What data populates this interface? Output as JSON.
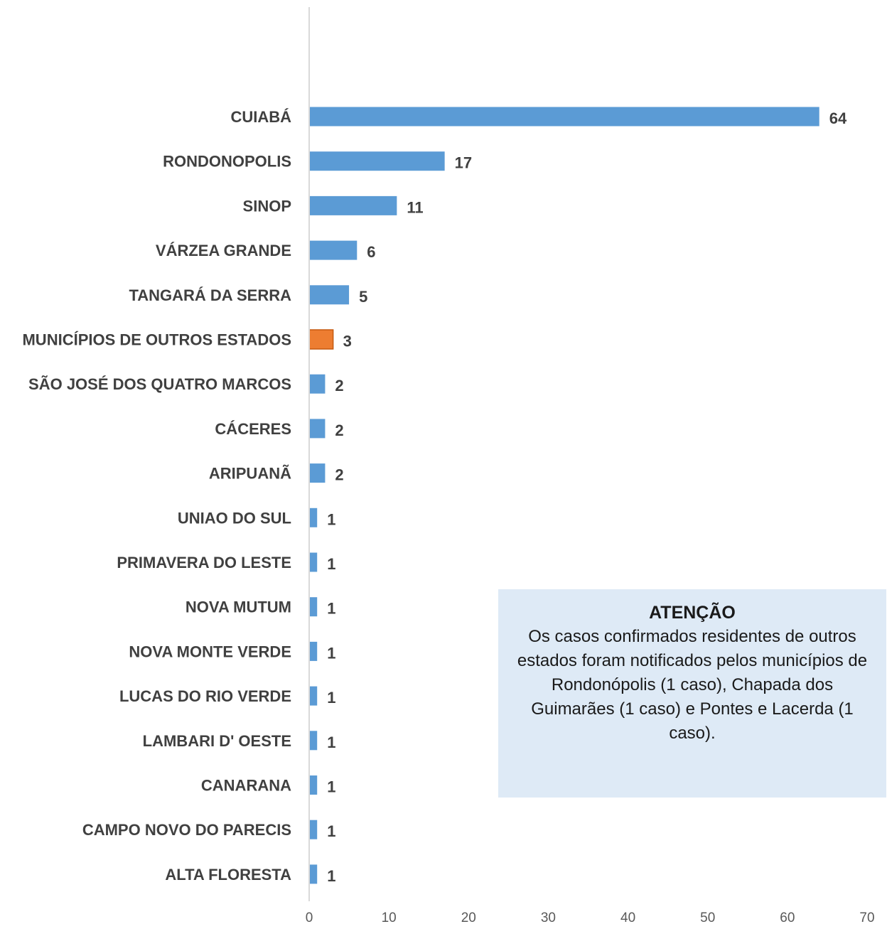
{
  "chart_data": {
    "type": "bar",
    "orientation": "horizontal",
    "categories": [
      "CUIABÁ",
      "RONDONOPOLIS",
      "SINOP",
      "VÁRZEA GRANDE",
      "TANGARÁ DA SERRA",
      "MUNICÍPIOS DE OUTROS ESTADOS",
      "SÃO JOSÉ DOS QUATRO MARCOS",
      "CÁCERES",
      "ARIPUANÃ",
      "UNIAO DO SUL",
      "PRIMAVERA DO LESTE",
      "NOVA MUTUM",
      "NOVA MONTE VERDE",
      "LUCAS DO RIO VERDE",
      "LAMBARI D' OESTE",
      "CANARANA",
      "CAMPO NOVO DO PARECIS",
      "ALTA FLORESTA"
    ],
    "values": [
      64,
      17,
      11,
      6,
      5,
      3,
      2,
      2,
      2,
      1,
      1,
      1,
      1,
      1,
      1,
      1,
      1,
      1
    ],
    "highlight_category": "MUNICÍPIOS DE OUTROS ESTADOS",
    "colors": {
      "bar": "#5b9bd5",
      "highlight": "#ed7d31",
      "axis": "#d9d9d9"
    },
    "xlim": [
      0,
      70
    ],
    "xticks": [
      0,
      10,
      20,
      30,
      40,
      50,
      60,
      70
    ],
    "grid": false,
    "legend": "none"
  },
  "note": {
    "title": "ATENÇÃO",
    "body": "Os casos confirmados residentes de outros estados foram notificados pelos municípios de Rondonópolis (1 caso), Chapada dos Guimarães (1 caso) e Pontes e Lacerda (1 caso)."
  }
}
